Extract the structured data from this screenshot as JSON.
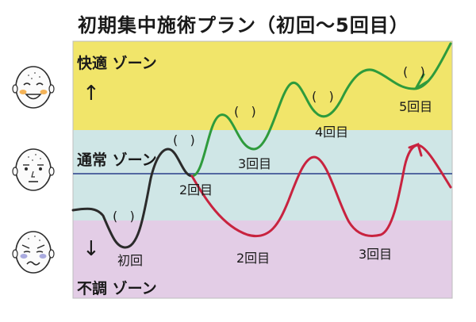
{
  "title": "初期集中施術プラン（初回～5回目）",
  "zones": {
    "comfort": {
      "label": "快適 ゾーン",
      "color": "#f1e56a"
    },
    "normal": {
      "label": "通常 ゾーン",
      "color": "#cfe6e6"
    },
    "poor": {
      "label": "不調 ゾーン",
      "color": "#e3cde6"
    }
  },
  "arrows": {
    "up": "↑",
    "down": "↓"
  },
  "faces": [
    {
      "name": "happy-face-icon",
      "mood": "happy"
    },
    {
      "name": "neutral-face-icon",
      "mood": "neutral"
    },
    {
      "name": "unwell-face-icon",
      "mood": "unwell"
    }
  ],
  "paths": {
    "initial": {
      "color": "#2b2b2b"
    },
    "with_treatment": {
      "color": "#2e9b3c"
    },
    "without_treatment": {
      "color": "#c8233f"
    }
  },
  "session_labels": {
    "initial": "初回",
    "green_2": "2回目",
    "green_3": "3回目",
    "green_4": "4回目",
    "green_5": "5回目",
    "red_2": "2回目",
    "red_3": "3回目"
  },
  "bracket": "(   )"
}
